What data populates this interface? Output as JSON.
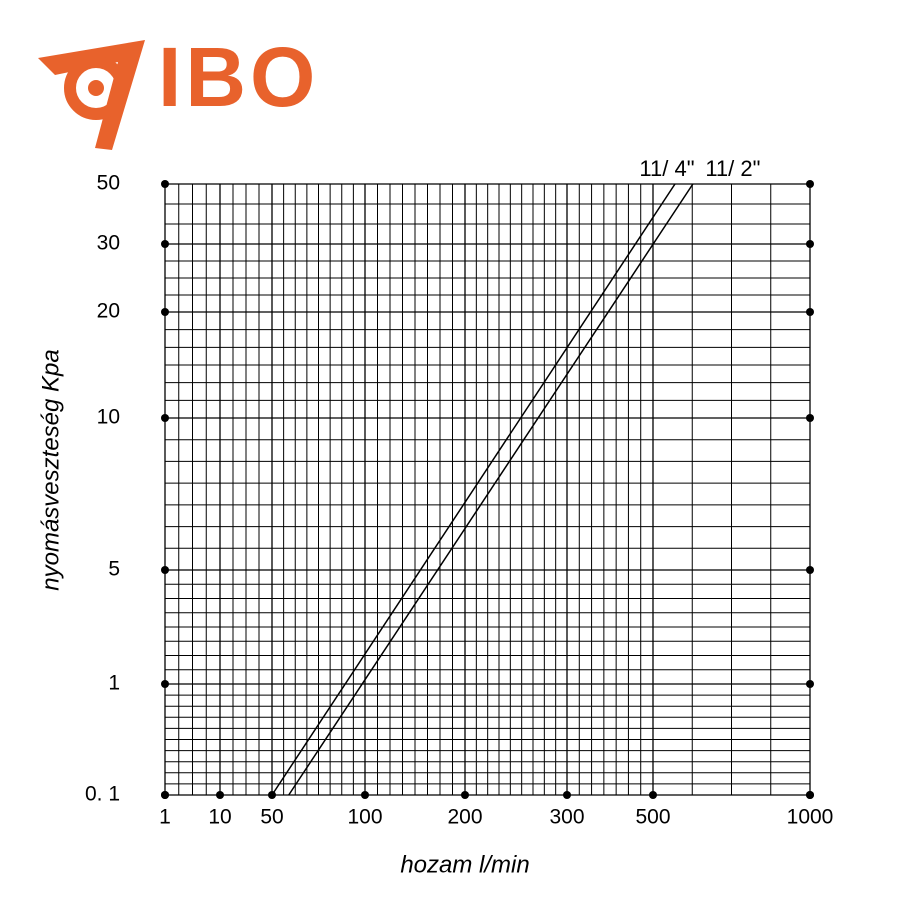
{
  "logo": "IBO",
  "chart_data": {
    "type": "line",
    "xlabel": "hozam l/min",
    "ylabel": "nyomásveszteség Kpa",
    "xlim": [
      1,
      1000
    ],
    "ylim": [
      0.1,
      50
    ],
    "xticks": [
      1,
      10,
      50,
      100,
      200,
      300,
      500,
      1000
    ],
    "yticks": [
      {
        "value": 0.1,
        "label": "0. 1"
      },
      1,
      5,
      10,
      20,
      30,
      50
    ],
    "grid": true,
    "series": [
      {
        "name": "11/ 4\"",
        "color": "#000000",
        "x": [
          50,
          570
        ],
        "values": [
          0.1,
          50
        ]
      },
      {
        "name": "11/ 2\"",
        "color": "#000000",
        "x": [
          59,
          627
        ],
        "values": [
          0.1,
          50
        ]
      }
    ]
  }
}
